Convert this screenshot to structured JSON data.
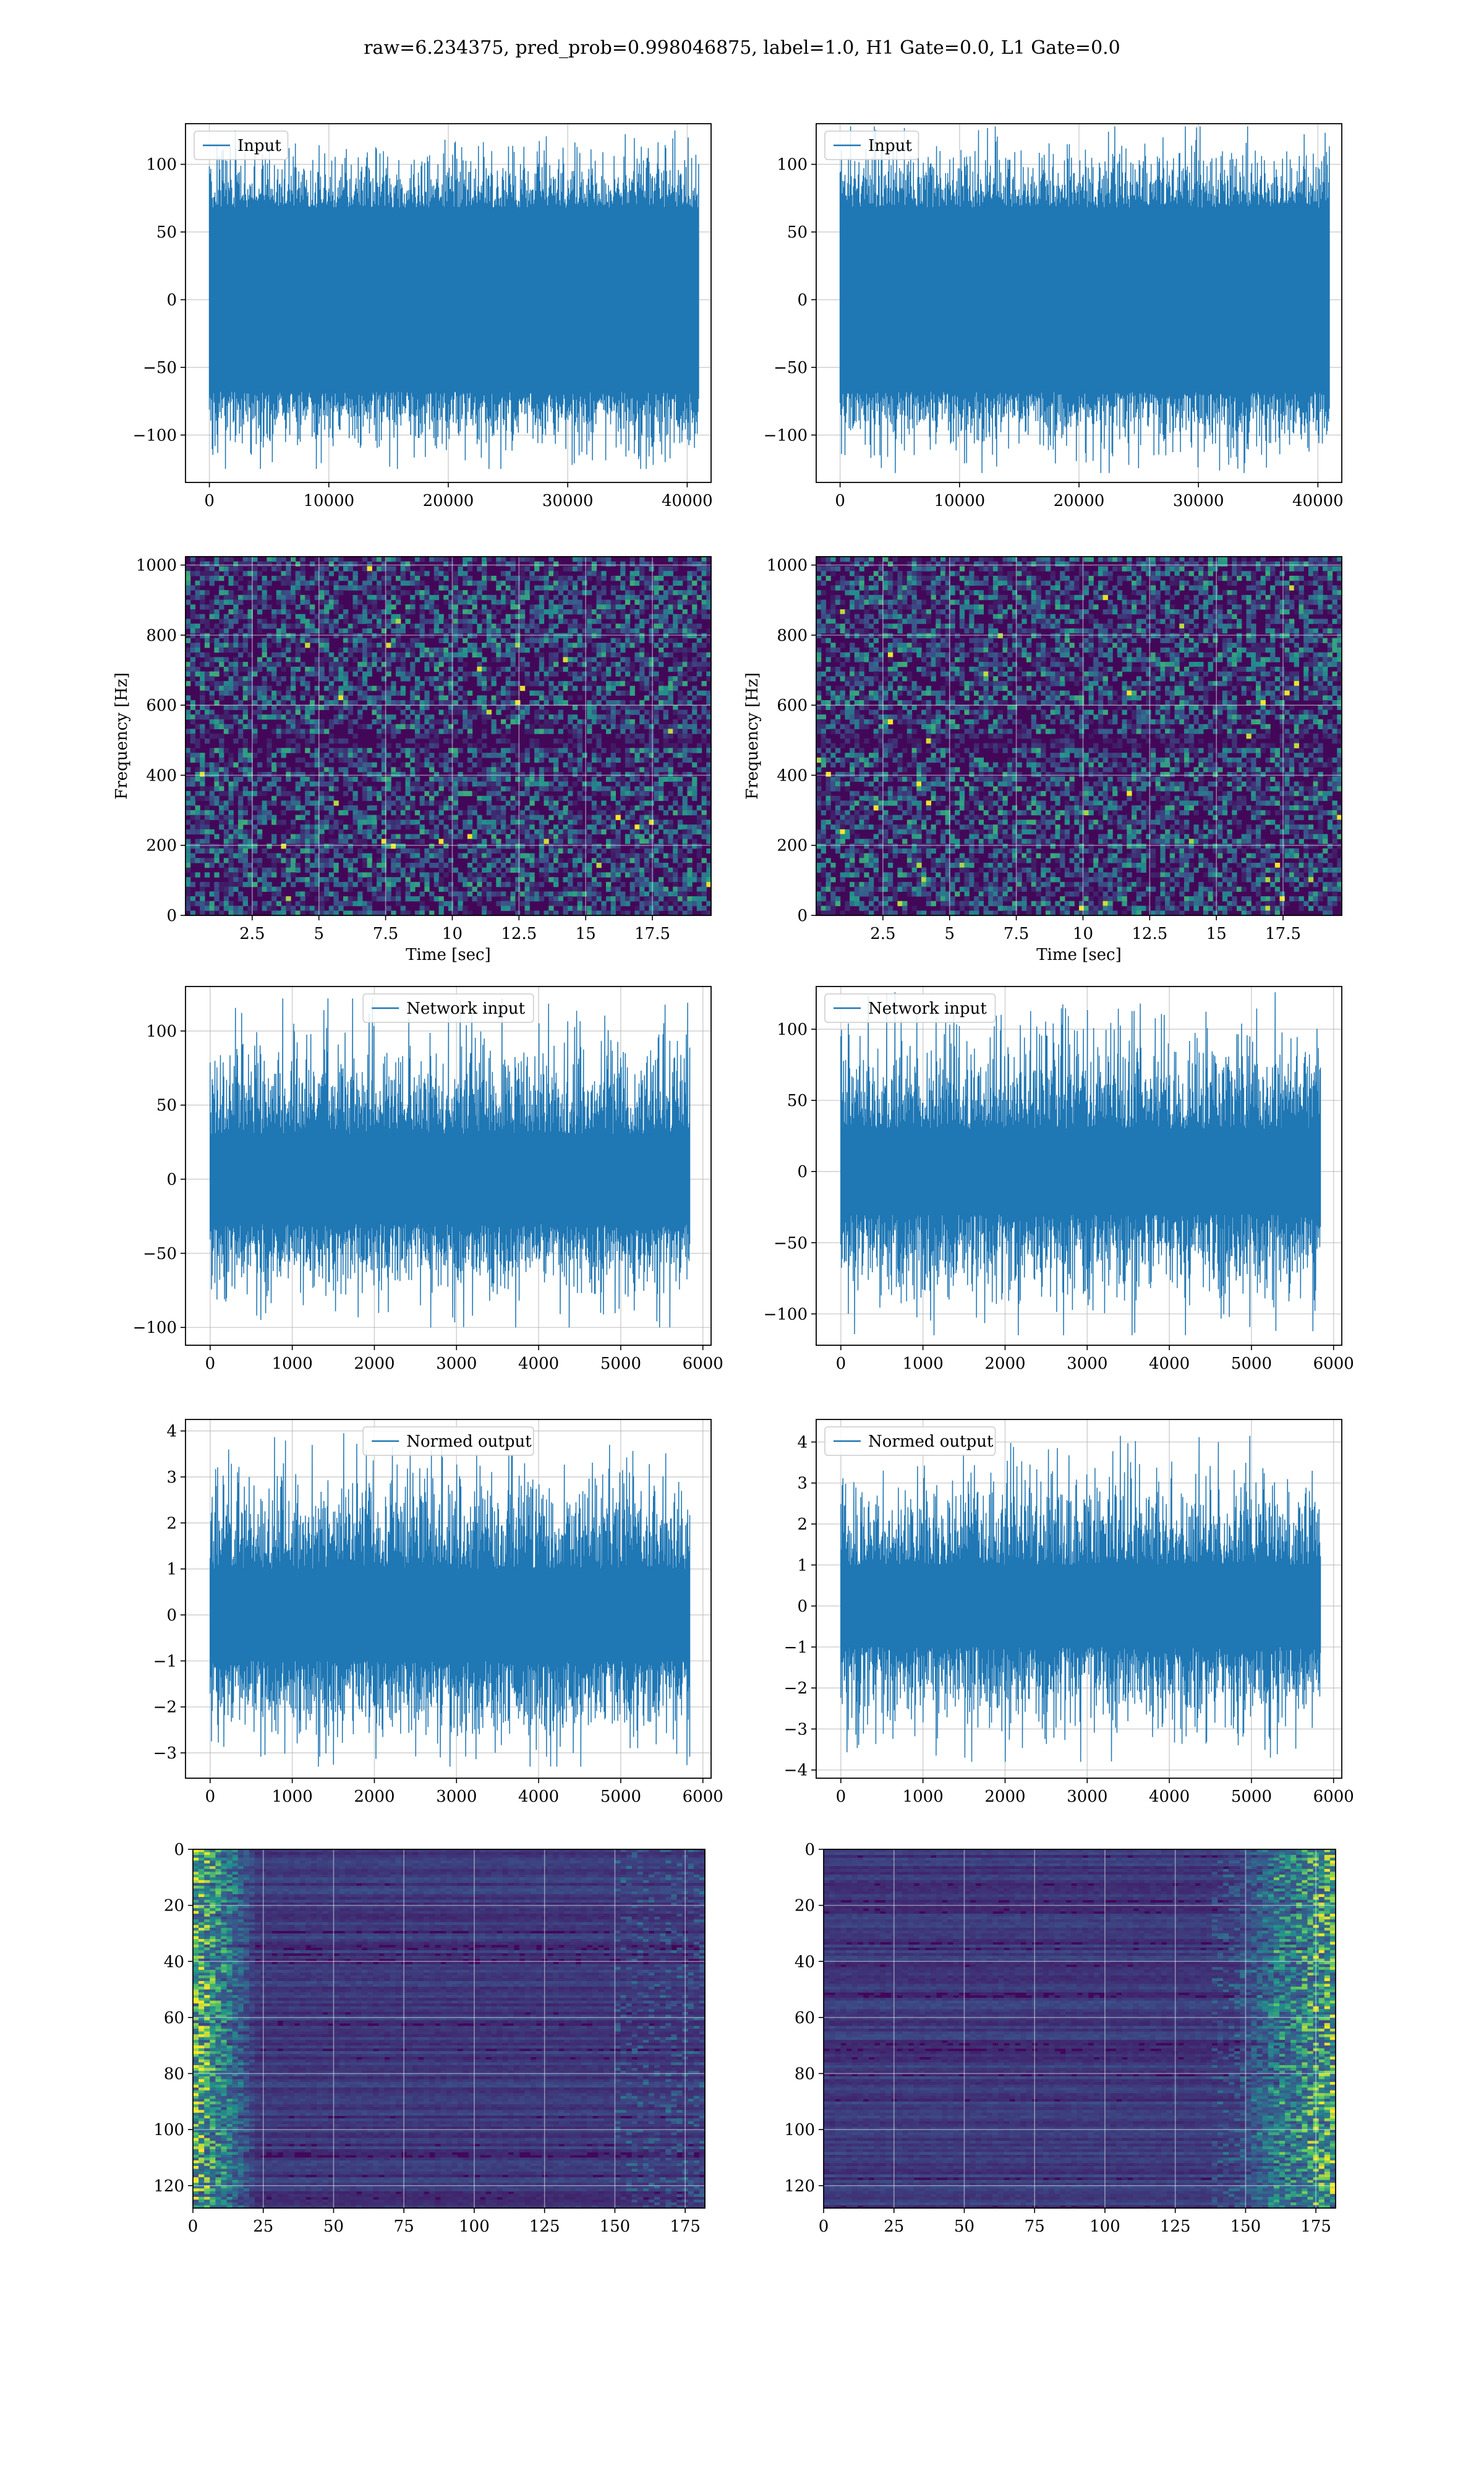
{
  "figure_title": "raw=6.234375, pred_prob=0.998046875, label=1.0, H1 Gate=0.0, L1 Gate=0.0",
  "colors": {
    "line": "#1f77b4",
    "grid": "#d9d9d9",
    "viridis_dark": "#440154",
    "viridis_mid": "#21918c",
    "viridis_bright": "#fde725"
  },
  "chart_data": [
    {
      "id": "input-h1",
      "type": "line",
      "legend": "Input",
      "legend_loc": "upper left",
      "xlim": [
        -2000,
        42000
      ],
      "ylim": [
        -135,
        130
      ],
      "xticks": [
        0,
        10000,
        20000,
        30000,
        40000
      ],
      "yticks": [
        -100,
        -50,
        0,
        50,
        100
      ],
      "x_range": [
        0,
        40960
      ],
      "band": [
        -68,
        68
      ],
      "spike_extent": [
        -125,
        125
      ],
      "grid": true
    },
    {
      "id": "input-l1",
      "type": "line",
      "legend": "Input",
      "legend_loc": "upper left",
      "xlim": [
        -2000,
        42000
      ],
      "ylim": [
        -135,
        130
      ],
      "xticks": [
        0,
        10000,
        20000,
        30000,
        40000
      ],
      "yticks": [
        -100,
        -50,
        0,
        50,
        100
      ],
      "x_range": [
        0,
        40960
      ],
      "band": [
        -68,
        68
      ],
      "spike_extent": [
        -128,
        128
      ],
      "grid": true
    },
    {
      "id": "spectrogram-h1",
      "type": "heatmap",
      "xlabel": "Time [sec]",
      "ylabel": "Frequency [Hz]",
      "xlim": [
        0,
        19.7
      ],
      "ylim": [
        0,
        1024
      ],
      "xticks": [
        2.5,
        5.0,
        7.5,
        10.0,
        12.5,
        15.0,
        17.5
      ],
      "yticks": [
        0,
        200,
        400,
        600,
        800,
        1000
      ],
      "colormap": "viridis",
      "grid": true
    },
    {
      "id": "spectrogram-l1",
      "type": "heatmap",
      "xlabel": "Time [sec]",
      "ylabel": "Frequency [Hz]",
      "xlim": [
        0,
        19.7
      ],
      "ylim": [
        0,
        1024
      ],
      "xticks": [
        2.5,
        5.0,
        7.5,
        10.0,
        12.5,
        15.0,
        17.5
      ],
      "yticks": [
        0,
        200,
        400,
        600,
        800,
        1000
      ],
      "colormap": "viridis",
      "grid": true
    },
    {
      "id": "network-input-h1",
      "type": "line",
      "legend": "Network input",
      "legend_loc": "upper center",
      "xlim": [
        -300,
        6100
      ],
      "ylim": [
        -112,
        130
      ],
      "xticks": [
        0,
        1000,
        2000,
        3000,
        4000,
        5000,
        6000
      ],
      "yticks": [
        -100,
        -50,
        0,
        50,
        100
      ],
      "x_range": [
        0,
        5840
      ],
      "band": [
        -30,
        30
      ],
      "spike_extent": [
        -100,
        122
      ],
      "grid": true
    },
    {
      "id": "network-input-l1",
      "type": "line",
      "legend": "Network input",
      "legend_loc": "upper left",
      "xlim": [
        -300,
        6100
      ],
      "ylim": [
        -122,
        130
      ],
      "xticks": [
        0,
        1000,
        2000,
        3000,
        4000,
        5000,
        6000
      ],
      "yticks": [
        -100,
        -50,
        0,
        50,
        100
      ],
      "x_range": [
        0,
        5840
      ],
      "band": [
        -30,
        30
      ],
      "spike_extent": [
        -115,
        126
      ],
      "grid": true
    },
    {
      "id": "normed-output-h1",
      "type": "line",
      "legend": "Normed output",
      "legend_loc": "upper center",
      "xlim": [
        -300,
        6100
      ],
      "ylim": [
        -3.55,
        4.25
      ],
      "xticks": [
        0,
        1000,
        2000,
        3000,
        4000,
        5000,
        6000
      ],
      "yticks": [
        -3,
        -2,
        -1,
        0,
        1,
        2,
        3,
        4
      ],
      "x_range": [
        0,
        5840
      ],
      "band": [
        -1,
        1
      ],
      "spike_extent": [
        -3.3,
        3.95
      ],
      "grid": true
    },
    {
      "id": "normed-output-l1",
      "type": "line",
      "legend": "Normed output",
      "legend_loc": "upper left",
      "xlim": [
        -300,
        6100
      ],
      "ylim": [
        -4.2,
        4.55
      ],
      "xticks": [
        0,
        1000,
        2000,
        3000,
        4000,
        5000,
        6000
      ],
      "yticks": [
        -4,
        -3,
        -2,
        -1,
        0,
        1,
        2,
        3,
        4
      ],
      "x_range": [
        0,
        5840
      ],
      "band": [
        -1,
        1
      ],
      "spike_extent": [
        -3.8,
        4.15
      ],
      "grid": true
    },
    {
      "id": "feature-map-h1",
      "type": "heatmap",
      "xlim": [
        0,
        182
      ],
      "ylim": [
        128,
        0
      ],
      "xticks": [
        0,
        25,
        50,
        75,
        100,
        125,
        150,
        175
      ],
      "yticks": [
        0,
        20,
        40,
        60,
        80,
        100,
        120
      ],
      "colormap": "viridis",
      "bright_region": "left",
      "grid": true
    },
    {
      "id": "feature-map-l1",
      "type": "heatmap",
      "xlim": [
        0,
        182
      ],
      "ylim": [
        128,
        0
      ],
      "xticks": [
        0,
        25,
        50,
        75,
        100,
        125,
        150,
        175
      ],
      "yticks": [
        0,
        20,
        40,
        60,
        80,
        100,
        120
      ],
      "colormap": "viridis",
      "bright_region": "right",
      "grid": true
    }
  ]
}
